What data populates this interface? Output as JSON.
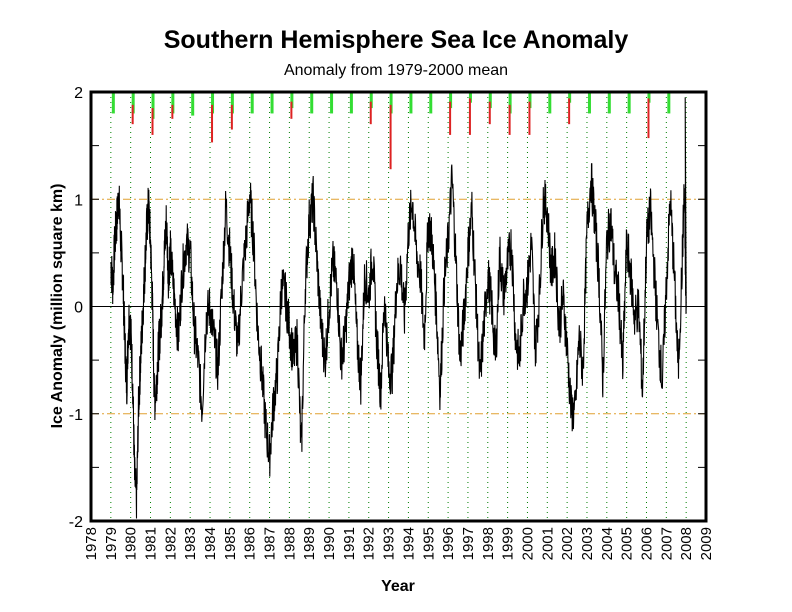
{
  "chart": {
    "title": "Southern Hemisphere Sea Ice Anomaly",
    "subtitle": "Anomaly from 1979-2000 mean",
    "xlabel": "Year",
    "ylabel": "Ice Anomaly (million square km)"
  },
  "colors": {
    "series": "#000000",
    "ref_lines": "#e0a030",
    "grid": "#008000",
    "positive_bar": "#33dd33",
    "negative_bar": "#dd2222"
  },
  "chart_data": {
    "type": "line",
    "title": "Southern Hemisphere Sea Ice Anomaly",
    "subtitle": "Anomaly from 1979-2000 mean",
    "xlabel": "Year",
    "ylabel": "Ice Anomaly (million square km)",
    "xlim": [
      1978,
      2009
    ],
    "ylim": [
      -2,
      2
    ],
    "x_ticks": [
      1978,
      1979,
      1980,
      1981,
      1982,
      1983,
      1984,
      1985,
      1986,
      1987,
      1988,
      1989,
      1990,
      1991,
      1992,
      1993,
      1994,
      1995,
      1996,
      1997,
      1998,
      1999,
      2000,
      2001,
      2002,
      2003,
      2004,
      2005,
      2006,
      2007,
      2008,
      2009
    ],
    "y_ticks": [
      -2,
      -1,
      0,
      1,
      2
    ],
    "y_minor_ticks": [
      -1.5,
      -0.5,
      0.5,
      1.5
    ],
    "reference_lines": [
      1,
      -1
    ],
    "zero_line": 0,
    "grid": "vertical dotted lines at each year",
    "series": [
      {
        "name": "Southern Hemisphere sea ice anomaly",
        "x": [
          1979.0,
          1979.1,
          1979.2,
          1979.3,
          1979.4,
          1979.5,
          1979.6,
          1979.7,
          1979.8,
          1979.9,
          1980.0,
          1980.1,
          1980.2,
          1980.3,
          1980.4,
          1980.5,
          1980.6,
          1980.7,
          1980.8,
          1980.9,
          1981.0,
          1981.1,
          1981.2,
          1981.3,
          1981.4,
          1981.5,
          1981.6,
          1981.7,
          1981.8,
          1981.9,
          1982.0,
          1982.2,
          1982.4,
          1982.6,
          1982.8,
          1983.0,
          1983.2,
          1983.4,
          1983.6,
          1983.8,
          1984.0,
          1984.2,
          1984.4,
          1984.6,
          1984.8,
          1985.0,
          1985.2,
          1985.4,
          1985.6,
          1985.8,
          1986.0,
          1986.2,
          1986.4,
          1986.6,
          1986.8,
          1987.0,
          1987.2,
          1987.4,
          1987.6,
          1987.8,
          1988.0,
          1988.2,
          1988.4,
          1988.6,
          1988.8,
          1989.0,
          1989.2,
          1989.4,
          1989.6,
          1989.8,
          1990.0,
          1990.2,
          1990.4,
          1990.6,
          1990.8,
          1991.0,
          1991.2,
          1991.4,
          1991.6,
          1991.8,
          1992.0,
          1992.2,
          1992.4,
          1992.6,
          1992.8,
          1993.0,
          1993.2,
          1993.4,
          1993.6,
          1993.8,
          1994.0,
          1994.2,
          1994.4,
          1994.6,
          1994.8,
          1995.0,
          1995.2,
          1995.4,
          1995.6,
          1995.8,
          1996.0,
          1996.2,
          1996.4,
          1996.6,
          1996.8,
          1997.0,
          1997.2,
          1997.4,
          1997.6,
          1997.8,
          1998.0,
          1998.2,
          1998.4,
          1998.6,
          1998.8,
          1999.0,
          1999.2,
          1999.4,
          1999.6,
          1999.8,
          2000.0,
          2000.2,
          2000.4,
          2000.6,
          2000.8,
          2001.0,
          2001.2,
          2001.4,
          2001.6,
          2001.8,
          2002.0,
          2002.2,
          2002.4,
          2002.6,
          2002.8,
          2003.0,
          2003.2,
          2003.4,
          2003.6,
          2003.8,
          2004.0,
          2004.2,
          2004.4,
          2004.6,
          2004.8,
          2005.0,
          2005.2,
          2005.4,
          2005.6,
          2005.8,
          2006.0,
          2006.2,
          2006.4,
          2006.6,
          2006.8,
          2007.0,
          2007.2,
          2007.4,
          2007.6,
          2007.8,
          2007.9,
          2008.0
        ],
        "y": [
          0.4,
          0.2,
          0.6,
          0.8,
          1.05,
          0.6,
          0.3,
          -0.3,
          -0.75,
          -0.1,
          -0.2,
          -0.7,
          -1.6,
          -1.8,
          -0.9,
          -0.5,
          -0.1,
          0.3,
          0.7,
          0.95,
          0.6,
          0.0,
          -0.9,
          -0.7,
          -0.4,
          -0.2,
          0.1,
          0.5,
          0.8,
          0.3,
          0.5,
          0.1,
          -0.3,
          0.3,
          0.6,
          0.5,
          -0.2,
          -0.5,
          -0.95,
          -0.1,
          0.0,
          -0.3,
          -0.6,
          0.2,
          0.95,
          0.5,
          0.0,
          -0.4,
          0.2,
          0.6,
          1.05,
          0.6,
          -0.2,
          -0.6,
          -1.1,
          -1.4,
          -0.9,
          -0.6,
          0.2,
          0.1,
          -0.2,
          -0.5,
          -0.3,
          -1.4,
          0.2,
          0.8,
          1.0,
          0.4,
          -0.2,
          -0.5,
          0.0,
          0.4,
          0.2,
          -0.5,
          -0.3,
          0.2,
          0.5,
          -0.3,
          -0.7,
          0.3,
          0.1,
          0.5,
          -0.3,
          -0.8,
          0.1,
          -0.6,
          -0.6,
          0.2,
          0.4,
          -0.1,
          0.7,
          1.0,
          0.5,
          0.3,
          -0.3,
          0.8,
          0.6,
          0.0,
          -0.8,
          0.2,
          0.6,
          1.2,
          0.4,
          -0.5,
          -0.1,
          0.5,
          0.9,
          0.1,
          -0.7,
          -0.2,
          0.3,
          0.0,
          -0.5,
          0.5,
          0.1,
          0.4,
          0.6,
          -0.3,
          -0.5,
          0.1,
          0.2,
          0.6,
          -0.4,
          0.1,
          1.0,
          0.9,
          0.3,
          0.5,
          -0.2,
          0.1,
          -0.4,
          -0.95,
          -1.0,
          -0.3,
          -0.6,
          0.7,
          1.2,
          0.8,
          0.3,
          -0.7,
          0.6,
          0.8,
          0.3,
          0.1,
          -0.6,
          0.6,
          0.3,
          -0.1,
          0.0,
          -0.8,
          0.6,
          0.9,
          0.3,
          -0.3,
          -0.7,
          0.2,
          1.0,
          0.3,
          -0.6,
          0.4,
          1.1,
          0.0
        ]
      }
    ],
    "top_markers": {
      "description": "Short vertical bars hanging from the top axis at each year, green segment then red segment (annual min/max indicators)",
      "years": [
        1979,
        1980,
        1981,
        1982,
        1983,
        1984,
        1985,
        1986,
        1987,
        1988,
        1989,
        1990,
        1991,
        1992,
        1993,
        1994,
        1995,
        1996,
        1997,
        1998,
        1999,
        2000,
        2001,
        2002,
        2003,
        2004,
        2005,
        2006,
        2007
      ],
      "green_depth": [
        0.2,
        0.2,
        0.25,
        0.2,
        0.22,
        0.2,
        0.2,
        0.2,
        0.2,
        0.15,
        0.2,
        0.2,
        0.2,
        0.15,
        0.2,
        0.2,
        0.2,
        0.15,
        0.1,
        0.15,
        0.2,
        0.15,
        0.2,
        0.1,
        0.2,
        0.2,
        0.2,
        0.1,
        0.2
      ],
      "red_depth": [
        0,
        0.3,
        0.4,
        0.25,
        0,
        0.47,
        0.35,
        0,
        0,
        0.25,
        0,
        0,
        0,
        0.3,
        0.72,
        0,
        0,
        0.4,
        0.4,
        0.3,
        0.4,
        0.4,
        0,
        0.3,
        0,
        0,
        0,
        0.43,
        0
      ]
    }
  }
}
